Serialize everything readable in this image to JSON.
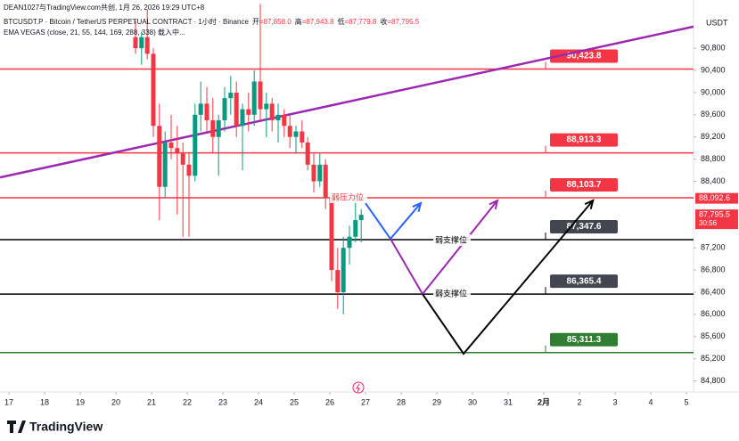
{
  "header": {
    "line1": "DEAN1027与TradingView.com共创, 1月 26, 2026 19:29 UTC+8",
    "symbol": "BTCUSDT.P · Bitcoin / TetherUS PERPETUAL CONTRACT · 1小时 · Binance",
    "ohlc": [
      {
        "key": "开",
        "value": "87,858.0"
      },
      {
        "key": "高",
        "value": "87,943.8"
      },
      {
        "key": "低",
        "value": "87,779.8"
      },
      {
        "key": "收",
        "value": "87,795.5"
      }
    ],
    "indicator": "EMA VEGAS (close, 21, 55, 144, 169, 288, 338) 载入中..."
  },
  "footer": {
    "logo": "TradingView"
  },
  "chart_data": {
    "type": "candlestick",
    "currency": "USDT",
    "xlim": [
      -0.25,
      19.2
    ],
    "ylim": [
      84600,
      91670
    ],
    "xticks": [
      {
        "value": 0,
        "label": "17"
      },
      {
        "value": 1,
        "label": "18"
      },
      {
        "value": 2,
        "label": "19"
      },
      {
        "value": 3,
        "label": "20"
      },
      {
        "value": 4,
        "label": "21"
      },
      {
        "value": 5,
        "label": "22"
      },
      {
        "value": 6,
        "label": "23"
      },
      {
        "value": 7,
        "label": "24"
      },
      {
        "value": 8,
        "label": "25"
      },
      {
        "value": 9,
        "label": "26"
      },
      {
        "value": 10,
        "label": "27"
      },
      {
        "value": 11,
        "label": "28"
      },
      {
        "value": 12,
        "label": "29"
      },
      {
        "value": 13,
        "label": "30"
      },
      {
        "value": 14,
        "label": "31"
      },
      {
        "value": 15,
        "label": "2月"
      },
      {
        "value": 16,
        "label": "2"
      },
      {
        "value": 17,
        "label": "3"
      },
      {
        "value": 18,
        "label": "4"
      },
      {
        "value": 19,
        "label": "5"
      }
    ],
    "yticks": [
      {
        "value": 90800,
        "label": "90,800"
      },
      {
        "value": 90400,
        "label": "90,400"
      },
      {
        "value": 90000,
        "label": "90,000"
      },
      {
        "value": 89600,
        "label": "89,600"
      },
      {
        "value": 89200,
        "label": "89,200"
      },
      {
        "value": 88800,
        "label": "88,800"
      },
      {
        "value": 88400,
        "label": "88,400"
      },
      {
        "value": 87200,
        "label": "87,200"
      },
      {
        "value": 86800,
        "label": "86,800"
      },
      {
        "value": 86400,
        "label": "86,400"
      },
      {
        "value": 86000,
        "label": "86,000"
      },
      {
        "value": 85600,
        "label": "85,600"
      },
      {
        "value": 85200,
        "label": "85,200"
      },
      {
        "value": 84800,
        "label": "84,800"
      }
    ],
    "up_color": "#089981",
    "down_color": "#f23645",
    "x": [
      3.55,
      3.72,
      3.88,
      4.05,
      4.22,
      4.38,
      4.55,
      4.72,
      4.88,
      5.05,
      5.22,
      5.38,
      5.55,
      5.72,
      5.88,
      6.05,
      6.22,
      6.38,
      6.55,
      6.72,
      6.88,
      7.05,
      7.22,
      7.38,
      7.55,
      7.72,
      7.88,
      8.05,
      8.22,
      8.38,
      8.55,
      8.72,
      8.88,
      9.05,
      9.22,
      9.38,
      9.55,
      9.72,
      9.88
    ],
    "open": [
      91000,
      90800,
      91000,
      90700,
      89400,
      88300,
      89100,
      89000,
      88900,
      88700,
      88500,
      89600,
      89800,
      89500,
      89200,
      89500,
      89900,
      90000,
      89400,
      89700,
      89600,
      90200,
      89700,
      89800,
      89500,
      89600,
      89400,
      89200,
      89300,
      89100,
      88700,
      88400,
      88700,
      88100,
      86800,
      86400,
      87200,
      87400,
      87700
    ],
    "high": [
      91300,
      91100,
      91500,
      90800,
      89800,
      89300,
      89600,
      89400,
      89100,
      88900,
      89800,
      90200,
      90100,
      89900,
      89600,
      90100,
      90300,
      90200,
      89800,
      90000,
      90400,
      91600,
      90000,
      89900,
      89800,
      89700,
      89600,
      89400,
      89500,
      89200,
      88900,
      88900,
      88800,
      88200,
      87200,
      87400,
      87600,
      88100,
      87900
    ],
    "low": [
      90700,
      90500,
      90600,
      89200,
      87700,
      88100,
      88800,
      87800,
      87400,
      87400,
      88400,
      89300,
      89300,
      88900,
      88500,
      89300,
      89600,
      89200,
      88600,
      89300,
      89400,
      89500,
      89200,
      89300,
      89100,
      89200,
      89000,
      88900,
      89000,
      88600,
      88200,
      88300,
      87900,
      86600,
      86100,
      86000,
      86900,
      87300,
      87300
    ],
    "close": [
      90800,
      91000,
      90700,
      89400,
      88300,
      89100,
      89000,
      88900,
      88700,
      88500,
      89600,
      89800,
      89500,
      89200,
      89500,
      89900,
      90000,
      89400,
      89700,
      89600,
      90200,
      89700,
      89800,
      89500,
      89600,
      89400,
      89200,
      89300,
      89100,
      88700,
      88400,
      88700,
      88100,
      86800,
      86400,
      87200,
      87400,
      87700,
      87795.5
    ],
    "levels": [
      {
        "value": 90423.8,
        "label": "90,423.8",
        "color": "#f23645"
      },
      {
        "value": 88913.3,
        "label": "88,913.3",
        "color": "#f23645"
      },
      {
        "value": 88103.7,
        "label": "88,103.7",
        "color": "#f23645"
      },
      {
        "value": 87347.6,
        "label": "87,347.6",
        "color": "#000000"
      },
      {
        "value": 86365.4,
        "label": "86,365.4",
        "color": "#000000"
      },
      {
        "value": 85311.3,
        "label": "85,311.3",
        "color": "#2e7d32"
      }
    ],
    "axis_labels": [
      {
        "value": 88092.6,
        "label": "88,092.6",
        "color": "#f23645"
      },
      {
        "value": 87795.5,
        "label": "87,795.5",
        "countdown": "30:56",
        "color": "#f23645"
      }
    ],
    "trendline": {
      "color": "#9c27b0",
      "x": [
        -0.25,
        19.2
      ],
      "values": [
        88470,
        91190
      ]
    },
    "projections": [
      {
        "color": "#2962ff",
        "x": [
          10.0,
          10.7,
          11.55
        ],
        "values": [
          88006,
          87363,
          88006
        ]
      },
      {
        "color": "#9c27b0",
        "x": [
          10.7,
          11.6,
          13.7
        ],
        "values": [
          87363,
          86367,
          88054
        ]
      },
      {
        "color": "#000000",
        "x": [
          11.6,
          12.75,
          16.38
        ],
        "values": [
          86367,
          85290,
          88054
        ]
      }
    ],
    "annotations": [
      {
        "text": "弱压力位",
        "color": "#f23645"
      },
      {
        "text": "弱支撑位",
        "color": "#000000"
      },
      {
        "text": "弱支撑位",
        "color": "#000000"
      }
    ]
  }
}
